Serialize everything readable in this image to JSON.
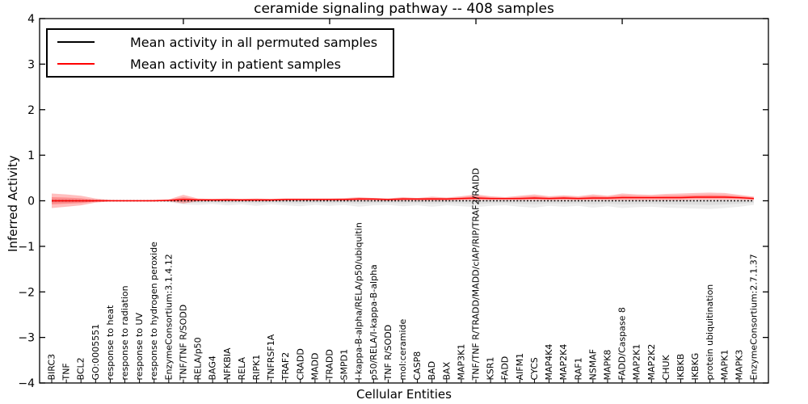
{
  "title": "ceramide signaling pathway -- 408 samples",
  "legend": {
    "items": [
      {
        "label": "Mean activity in all permuted samples",
        "color": "#000000"
      },
      {
        "label": "Mean activity in patient samples",
        "color": "#ff0000"
      }
    ]
  },
  "chart_data": {
    "type": "line",
    "title": "ceramide signaling pathway -- 408 samples",
    "xlabel": "Cellular Entities",
    "ylabel": "Inferred Activity",
    "ylim": [
      -4,
      4
    ],
    "yticks": [
      -4,
      -3,
      -2,
      -1,
      0,
      1,
      2,
      3,
      4
    ],
    "grid": false,
    "legend_position": "upper left",
    "categories": [
      "BIRC3",
      "TNF",
      "BCL2",
      "GO:0005551",
      "response to heat",
      "response to radiation",
      "response to UV",
      "response to hydrogen peroxide",
      "EnzymeConsortium:3.1.4.12",
      "TNF/TNF R/SODD",
      "RELA/p50",
      "BAG4",
      "NFKBIA",
      "RELA",
      "RIPK1",
      "TNFRSF1A",
      "TRAF2",
      "CRADD",
      "MADD",
      "TRADD",
      "SMPD1",
      "I-kappa-B-alpha/RELA/p50/ubiquitin",
      "p50/RELA/I-kappa-B-alpha",
      "TNF R/SODD",
      "mol:ceramide",
      "CASP8",
      "BAD",
      "BAX",
      "MAP3K1",
      "TNF/TNF R/TRADD/MADD/cIAP/RIP/TRAF2/RAIDD",
      "KSR1",
      "FADD",
      "AIFM1",
      "CYCS",
      "MAP4K4",
      "MAP2K4",
      "RAF1",
      "NSMAF",
      "MAPK8",
      "FADD/Caspase 8",
      "MAP2K1",
      "MAP2K2",
      "CHUK",
      "IKBKB",
      "IKBKG",
      "protein ubiquitination",
      "MAPK1",
      "MAPK3",
      "EnzymeConsortium:2.7.1.37"
    ],
    "series": [
      {
        "name": "Mean activity in all permuted samples",
        "color": "#000000",
        "line_style": "dotted",
        "band_color": "#999999",
        "band_opacity": 0.18,
        "values": [
          0,
          0,
          0,
          0,
          0,
          0,
          0,
          0,
          0,
          0,
          0,
          0,
          0,
          0,
          0,
          0,
          0,
          0,
          0,
          0,
          0,
          0,
          0,
          0,
          0,
          0,
          0,
          0,
          0,
          0,
          0,
          0,
          0,
          0,
          0,
          0,
          0,
          0,
          0,
          0,
          0,
          0,
          0,
          0,
          0,
          0,
          0,
          0,
          0
        ],
        "band_top": [
          0.03,
          0.03,
          0.02,
          0.02,
          0.01,
          0.01,
          0.01,
          0.01,
          0.02,
          0.02,
          0.02,
          0.02,
          0.02,
          0.02,
          0.02,
          0.02,
          0.02,
          0.02,
          0.02,
          0.02,
          0.02,
          0.02,
          0.02,
          0.02,
          0.02,
          0.02,
          0.02,
          0.02,
          0.02,
          0.02,
          0.02,
          0.02,
          0.02,
          0.02,
          0.02,
          0.02,
          0.02,
          0.02,
          0.02,
          0.02,
          0.02,
          0.02,
          0.02,
          0.02,
          0.02,
          0.02,
          0.02,
          0.02,
          0.02
        ],
        "band_bottom": [
          -0.04,
          -0.04,
          -0.03,
          -0.02,
          -0.01,
          -0.01,
          -0.01,
          -0.015,
          -0.03,
          -0.08,
          -0.09,
          -0.07,
          -0.1,
          -0.08,
          -0.11,
          -0.08,
          -0.1,
          -0.12,
          -0.09,
          -0.11,
          -0.09,
          -0.13,
          -0.1,
          -0.09,
          -0.12,
          -0.1,
          -0.13,
          -0.1,
          -0.12,
          -0.14,
          -0.11,
          -0.1,
          -0.13,
          -0.15,
          -0.11,
          -0.13,
          -0.11,
          -0.15,
          -0.12,
          -0.16,
          -0.14,
          -0.13,
          -0.15,
          -0.16,
          -0.17,
          -0.18,
          -0.16,
          -0.13,
          -0.09
        ]
      },
      {
        "name": "Mean activity in patient samples",
        "color": "#ff0000",
        "line_style": "solid",
        "band_color": "#ff0000",
        "band_opacity": 0.25,
        "values": [
          0,
          0,
          0,
          0,
          0,
          0,
          0,
          0,
          0.01,
          0.03,
          0.02,
          0.02,
          0.02,
          0.02,
          0.02,
          0.02,
          0.03,
          0.03,
          0.03,
          0.03,
          0.03,
          0.04,
          0.04,
          0.03,
          0.04,
          0.04,
          0.04,
          0.04,
          0.05,
          0.06,
          0.05,
          0.05,
          0.05,
          0.06,
          0.05,
          0.06,
          0.05,
          0.06,
          0.06,
          0.07,
          0.07,
          0.07,
          0.07,
          0.07,
          0.08,
          0.08,
          0.08,
          0.07,
          0.05
        ],
        "band_top": [
          0.16,
          0.14,
          0.11,
          0.05,
          0.02,
          0.015,
          0.015,
          0.02,
          0.03,
          0.13,
          0.05,
          0.04,
          0.05,
          0.04,
          0.05,
          0.04,
          0.05,
          0.05,
          0.05,
          0.05,
          0.06,
          0.08,
          0.06,
          0.05,
          0.08,
          0.06,
          0.09,
          0.07,
          0.1,
          0.14,
          0.1,
          0.08,
          0.11,
          0.14,
          0.1,
          0.12,
          0.1,
          0.14,
          0.11,
          0.16,
          0.14,
          0.13,
          0.15,
          0.16,
          0.17,
          0.18,
          0.17,
          0.13,
          0.09
        ],
        "band_bottom": [
          -0.16,
          -0.13,
          -0.1,
          -0.04,
          -0.01,
          -0.01,
          -0.01,
          -0.01,
          -0.01,
          -0.06,
          -0.01,
          -0.01,
          -0.01,
          -0.01,
          -0.01,
          -0.01,
          0,
          0,
          0,
          0,
          0,
          0,
          0,
          0,
          0,
          0,
          0,
          0,
          0.01,
          0.01,
          0.01,
          0.01,
          0.01,
          0.01,
          0.01,
          0.01,
          0.01,
          0.01,
          0.01,
          0.01,
          0.01,
          0.01,
          0.01,
          0.01,
          0.02,
          0.02,
          0.02,
          0.02,
          0.01
        ]
      }
    ]
  }
}
